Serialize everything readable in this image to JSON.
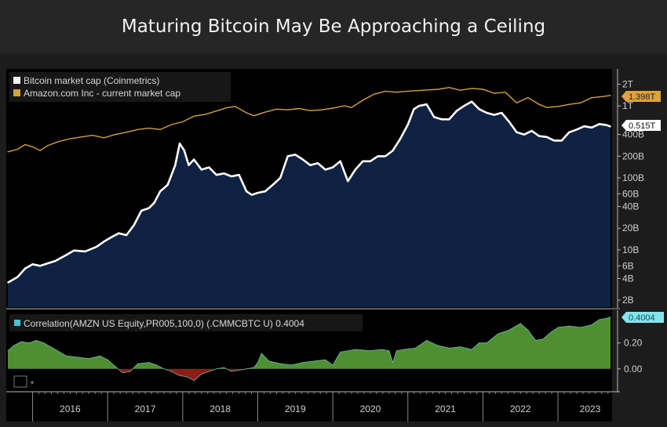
{
  "title": "Maturing Bitcoin May Be Approaching a Ceiling",
  "chart_data": [
    {
      "type": "area",
      "scale": "log",
      "ylim": [
        1600000000.0,
        3100000000000.0
      ],
      "xlim": [
        2015.67,
        2023.7
      ],
      "grid": false,
      "legend": "top-left",
      "y_ticks": [
        {
          "v": 2000000000000.0,
          "label": "2T"
        },
        {
          "v": 1000000000000.0,
          "label": "1T"
        },
        {
          "v": 400000000000.0,
          "label": "400B"
        },
        {
          "v": 200000000000.0,
          "label": "200B"
        },
        {
          "v": 100000000000.0,
          "label": "100B"
        },
        {
          "v": 60000000000.0,
          "label": "60B"
        },
        {
          "v": 40000000000.0,
          "label": "40B"
        },
        {
          "v": 20000000000.0,
          "label": "20B"
        },
        {
          "v": 10000000000.0,
          "label": "10B"
        },
        {
          "v": 6000000000.0,
          "label": "6B"
        },
        {
          "v": 4000000000.0,
          "label": "4B"
        },
        {
          "v": 2000000000.0,
          "label": "2B"
        }
      ],
      "series": [
        {
          "name": "Bitcoin market cap (Coinmetrics)",
          "color": "#ffffff",
          "fill": "#0f2242",
          "last_label": "0.515T",
          "x": [
            2015.67,
            2015.8,
            2015.9,
            2016.0,
            2016.1,
            2016.2,
            2016.3,
            2016.45,
            2016.55,
            2016.7,
            2016.85,
            2016.95,
            2017.05,
            2017.15,
            2017.25,
            2017.35,
            2017.45,
            2017.55,
            2017.62,
            2017.7,
            2017.8,
            2017.9,
            2017.96,
            2018.02,
            2018.08,
            2018.15,
            2018.25,
            2018.35,
            2018.45,
            2018.55,
            2018.65,
            2018.75,
            2018.85,
            2018.92,
            2019.0,
            2019.1,
            2019.2,
            2019.3,
            2019.4,
            2019.5,
            2019.6,
            2019.7,
            2019.8,
            2019.9,
            2020.0,
            2020.1,
            2020.2,
            2020.3,
            2020.4,
            2020.5,
            2020.6,
            2020.7,
            2020.8,
            2020.9,
            2021.0,
            2021.08,
            2021.15,
            2021.25,
            2021.35,
            2021.45,
            2021.55,
            2021.65,
            2021.75,
            2021.85,
            2021.95,
            2022.05,
            2022.15,
            2022.25,
            2022.35,
            2022.45,
            2022.55,
            2022.65,
            2022.75,
            2022.85,
            2022.95,
            2023.05,
            2023.15,
            2023.25,
            2023.35,
            2023.45,
            2023.55,
            2023.65,
            2023.7
          ],
          "values": [
            3500000000.0,
            4200000000.0,
            5500000000.0,
            6300000000.0,
            6000000000.0,
            6500000000.0,
            7000000000.0,
            8500000000.0,
            9800000000.0,
            9500000000.0,
            11000000000.0,
            13000000000.0,
            15000000000.0,
            17000000000.0,
            16000000000.0,
            22000000000.0,
            35000000000.0,
            38000000000.0,
            45000000000.0,
            65000000000.0,
            80000000000.0,
            150000000000.0,
            300000000000.0,
            240000000000.0,
            150000000000.0,
            180000000000.0,
            130000000000.0,
            140000000000.0,
            110000000000.0,
            115000000000.0,
            105000000000.0,
            110000000000.0,
            65000000000.0,
            58000000000.0,
            62000000000.0,
            65000000000.0,
            80000000000.0,
            100000000000.0,
            200000000000.0,
            210000000000.0,
            180000000000.0,
            150000000000.0,
            160000000000.0,
            130000000000.0,
            140000000000.0,
            170000000000.0,
            90000000000.0,
            130000000000.0,
            170000000000.0,
            170000000000.0,
            200000000000.0,
            200000000000.0,
            240000000000.0,
            350000000000.0,
            550000000000.0,
            900000000000.0,
            1000000000000.0,
            1050000000000.0,
            700000000000.0,
            650000000000.0,
            650000000000.0,
            850000000000.0,
            1000000000000.0,
            1150000000000.0,
            900000000000.0,
            800000000000.0,
            750000000000.0,
            800000000000.0,
            600000000000.0,
            430000000000.0,
            400000000000.0,
            450000000000.0,
            380000000000.0,
            370000000000.0,
            330000000000.0,
            330000000000.0,
            430000000000.0,
            470000000000.0,
            520000000000.0,
            500000000000.0,
            560000000000.0,
            540000000000.0,
            515000000000.0
          ]
        },
        {
          "name": "Amazon.com Inc - current market cap",
          "color": "#d4a13a",
          "last_label": "1.398T",
          "x": [
            2015.67,
            2015.8,
            2015.9,
            2016.0,
            2016.1,
            2016.2,
            2016.35,
            2016.5,
            2016.65,
            2016.8,
            2016.95,
            2017.1,
            2017.25,
            2017.4,
            2017.55,
            2017.7,
            2017.85,
            2018.0,
            2018.15,
            2018.3,
            2018.45,
            2018.6,
            2018.7,
            2018.85,
            2018.95,
            2019.1,
            2019.25,
            2019.4,
            2019.55,
            2019.7,
            2019.85,
            2020.0,
            2020.15,
            2020.25,
            2020.4,
            2020.55,
            2020.7,
            2020.85,
            2021.0,
            2021.2,
            2021.4,
            2021.55,
            2021.7,
            2021.85,
            2022.0,
            2022.15,
            2022.3,
            2022.45,
            2022.6,
            2022.75,
            2022.85,
            2023.0,
            2023.15,
            2023.3,
            2023.45,
            2023.6,
            2023.7
          ],
          "values": [
            230000000000.0,
            250000000000.0,
            290000000000.0,
            270000000000.0,
            240000000000.0,
            280000000000.0,
            320000000000.0,
            350000000000.0,
            370000000000.0,
            390000000000.0,
            360000000000.0,
            400000000000.0,
            430000000000.0,
            470000000000.0,
            490000000000.0,
            470000000000.0,
            550000000000.0,
            600000000000.0,
            720000000000.0,
            760000000000.0,
            850000000000.0,
            950000000000.0,
            980000000000.0,
            800000000000.0,
            730000000000.0,
            820000000000.0,
            900000000000.0,
            880000000000.0,
            920000000000.0,
            860000000000.0,
            880000000000.0,
            930000000000.0,
            1000000000000.0,
            950000000000.0,
            1200000000000.0,
            1450000000000.0,
            1600000000000.0,
            1550000000000.0,
            1600000000000.0,
            1650000000000.0,
            1700000000000.0,
            1800000000000.0,
            1650000000000.0,
            1750000000000.0,
            1700000000000.0,
            1500000000000.0,
            1550000000000.0,
            1100000000000.0,
            1300000000000.0,
            1050000000000.0,
            950000000000.0,
            980000000000.0,
            1050000000000.0,
            1100000000000.0,
            1300000000000.0,
            1350000000000.0,
            1398000000000.0
          ]
        }
      ]
    },
    {
      "type": "area",
      "ylim": [
        -0.14,
        0.44
      ],
      "xlim": [
        2015.67,
        2023.7
      ],
      "y_ticks": [
        {
          "v": 0.2,
          "label": "0.20"
        },
        {
          "v": 0.0,
          "label": "0.00"
        }
      ],
      "x_tick_labels": [
        "2016",
        "2017",
        "2018",
        "2019",
        "2020",
        "2021",
        "2022",
        "2023"
      ],
      "series": [
        {
          "name": "Correlation(AMZN US Equity,PR005,100,0) (.CMMCBTC U) 0.4004",
          "last_label": "0.4004",
          "color": "#4e8f32",
          "negative_color": "#8e1d18",
          "x": [
            2015.67,
            2015.75,
            2015.85,
            2015.95,
            2016.05,
            2016.15,
            2016.3,
            2016.45,
            2016.6,
            2016.75,
            2016.9,
            2017.0,
            2017.1,
            2017.2,
            2017.3,
            2017.4,
            2017.55,
            2017.65,
            2017.75,
            2017.85,
            2017.95,
            2018.05,
            2018.15,
            2018.25,
            2018.35,
            2018.45,
            2018.55,
            2018.65,
            2018.75,
            2018.85,
            2018.95,
            2019.0,
            2019.05,
            2019.15,
            2019.3,
            2019.45,
            2019.6,
            2019.75,
            2019.9,
            2020.0,
            2020.1,
            2020.3,
            2020.5,
            2020.65,
            2020.75,
            2020.8,
            2020.85,
            2020.95,
            2021.1,
            2021.25,
            2021.4,
            2021.55,
            2021.7,
            2021.85,
            2021.95,
            2022.05,
            2022.2,
            2022.35,
            2022.5,
            2022.6,
            2022.7,
            2022.8,
            2022.9,
            2023.0,
            2023.15,
            2023.3,
            2023.45,
            2023.55,
            2023.65,
            2023.7
          ],
          "values": [
            0.14,
            0.18,
            0.21,
            0.2,
            0.22,
            0.2,
            0.15,
            0.1,
            0.09,
            0.08,
            0.1,
            0.07,
            0.02,
            -0.03,
            -0.02,
            0.04,
            0.05,
            0.03,
            0.0,
            -0.02,
            -0.05,
            -0.06,
            -0.09,
            -0.04,
            -0.02,
            0.0,
            0.01,
            -0.02,
            -0.01,
            0.0,
            0.01,
            0.05,
            0.12,
            0.06,
            0.04,
            0.03,
            0.05,
            0.06,
            0.07,
            0.03,
            0.13,
            0.15,
            0.14,
            0.15,
            0.14,
            0.05,
            0.14,
            0.15,
            0.16,
            0.22,
            0.18,
            0.16,
            0.17,
            0.15,
            0.2,
            0.2,
            0.27,
            0.3,
            0.35,
            0.3,
            0.22,
            0.23,
            0.28,
            0.32,
            0.33,
            0.32,
            0.34,
            0.38,
            0.39,
            0.4004
          ]
        }
      ]
    }
  ]
}
